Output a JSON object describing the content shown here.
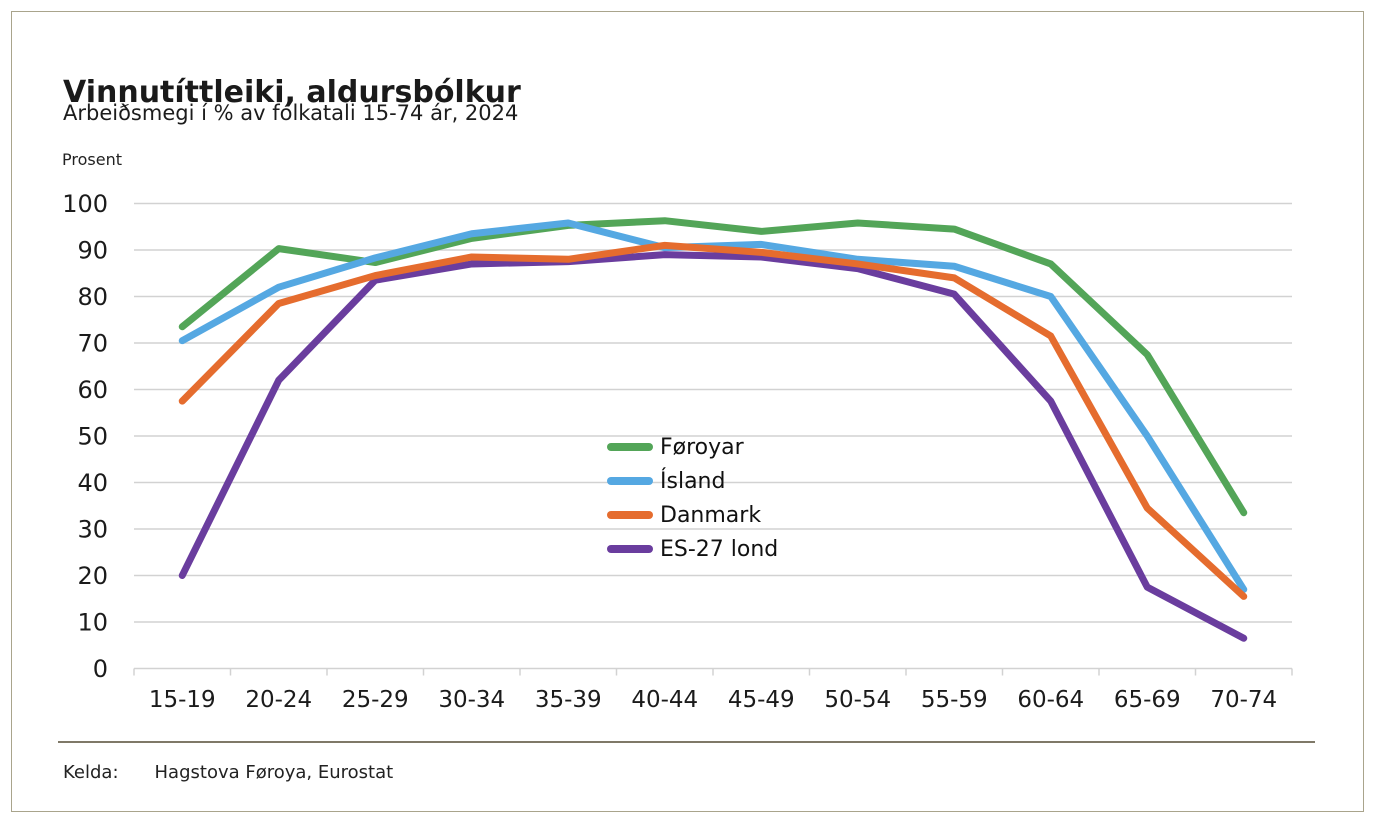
{
  "page": {
    "title": "Vinnutíttleiki, aldursbólkur",
    "subtitle": "Arbeiðsmegi í % av fólkatali 15-74 ár, 2024",
    "unit_label": "Prosent",
    "source_label": "Kelda:",
    "source_text": "Hagstova Føroya, Eurostat"
  },
  "chart_data": {
    "type": "line",
    "title": "Vinnutíttleiki, aldursbólkur",
    "subtitle": "Arbeiðsmegi í % av fólkatali 15-74 ár, 2024",
    "ylabel": "Prosent",
    "xlabel": "",
    "categories": [
      "15-19",
      "20-24",
      "25-29",
      "30-34",
      "35-39",
      "40-44",
      "45-49",
      "50-54",
      "55-59",
      "60-64",
      "65-69",
      "70-74"
    ],
    "series": [
      {
        "name": "Føroyar",
        "color": "#53a558",
        "values": [
          73.5,
          90.3,
          87.3,
          92.5,
          95.3,
          96.3,
          94.0,
          95.8,
          94.5,
          87.0,
          67.5,
          33.5
        ]
      },
      {
        "name": "Ísland",
        "color": "#55a8e2",
        "values": [
          70.5,
          82.0,
          88.3,
          93.5,
          95.8,
          90.5,
          91.2,
          88.0,
          86.5,
          80.0,
          50.0,
          17.0
        ]
      },
      {
        "name": "Danmark",
        "color": "#e56c2e",
        "values": [
          57.5,
          78.5,
          84.5,
          88.5,
          88.0,
          91.0,
          89.5,
          87.0,
          84.0,
          71.5,
          34.5,
          15.5
        ]
      },
      {
        "name": "ES-27 lond",
        "color": "#6a3d9e",
        "values": [
          20.0,
          62.0,
          83.5,
          87.0,
          87.5,
          89.0,
          88.5,
          86.0,
          80.5,
          57.5,
          17.5,
          6.5
        ]
      }
    ],
    "ylim": [
      0,
      100
    ],
    "ytick_step": 10,
    "grid": "horizontal",
    "gridline_color": "#d2d2d2",
    "legend_position": "inside-center-right",
    "z_order": [
      0,
      1,
      3,
      2
    ]
  }
}
